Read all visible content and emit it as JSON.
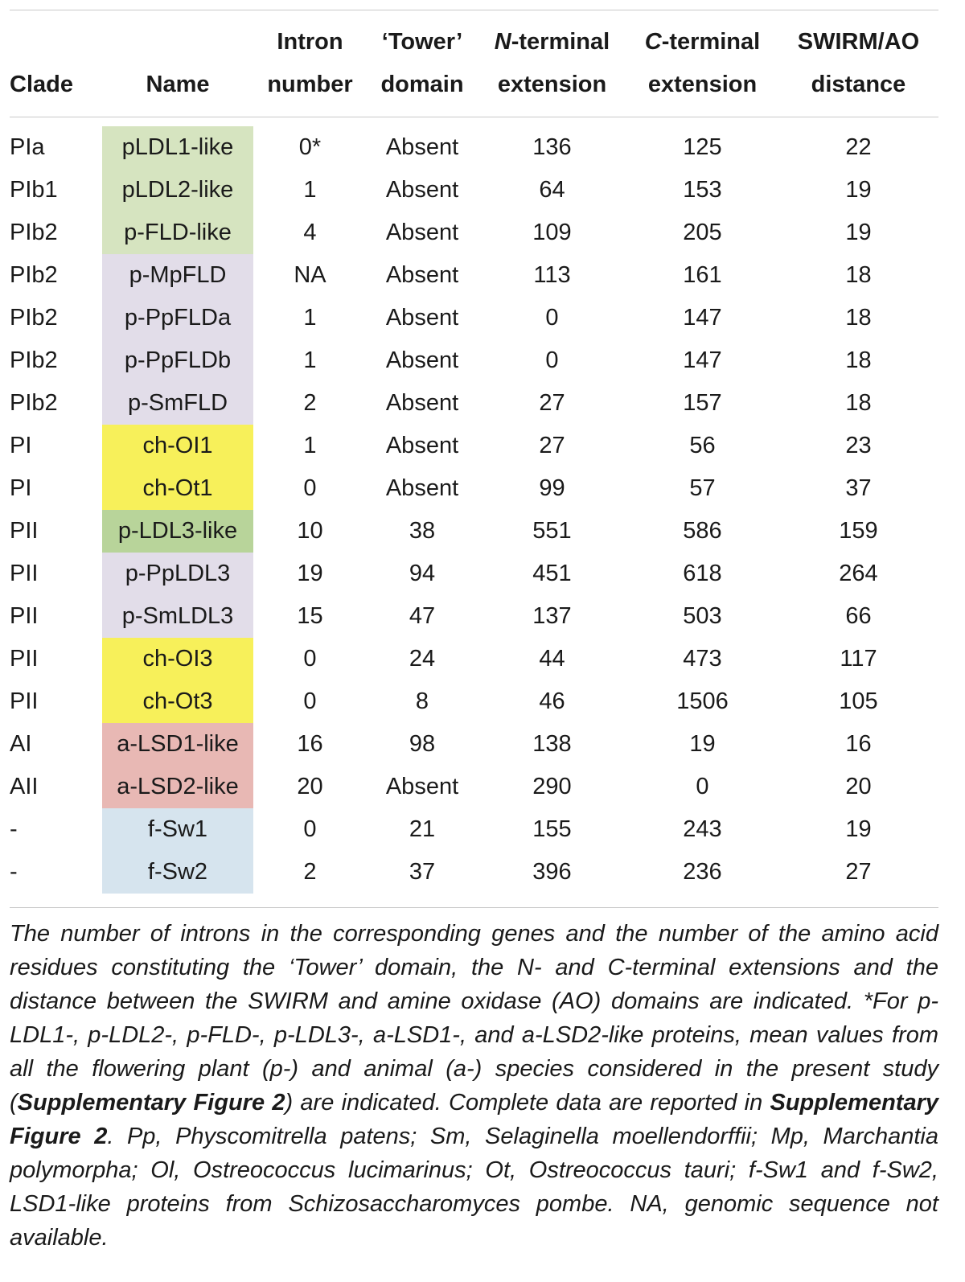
{
  "table": {
    "headers": {
      "clade": [
        "",
        "Clade"
      ],
      "name": [
        "",
        "Name"
      ],
      "intron": [
        "Intron",
        "number"
      ],
      "tower": [
        "‘Tower’",
        "domain"
      ],
      "nterm": [
        "N-terminal",
        "extension"
      ],
      "cterm": [
        "C-terminal",
        "extension"
      ],
      "swirm": [
        "SWIRM/AO",
        "distance"
      ]
    },
    "rows": [
      {
        "clade": "PIa",
        "name": "pLDL1-like",
        "color": "#d6e4c0",
        "intron": "0*",
        "tower": "Absent",
        "nterm": "136",
        "cterm": "125",
        "swirm": "22"
      },
      {
        "clade": "PIb1",
        "name": "pLDL2-like",
        "color": "#d6e4c0",
        "intron": "1",
        "tower": "Absent",
        "nterm": "64",
        "cterm": "153",
        "swirm": "19"
      },
      {
        "clade": "PIb2",
        "name": "p-FLD-like",
        "color": "#d6e4c0",
        "intron": "4",
        "tower": "Absent",
        "nterm": "109",
        "cterm": "205",
        "swirm": "19"
      },
      {
        "clade": "PIb2",
        "name": "p-MpFLD",
        "color": "#e2dde9",
        "intron": "NA",
        "tower": "Absent",
        "nterm": "113",
        "cterm": "161",
        "swirm": "18"
      },
      {
        "clade": "PIb2",
        "name": "p-PpFLDa",
        "color": "#e2dde9",
        "intron": "1",
        "tower": "Absent",
        "nterm": "0",
        "cterm": "147",
        "swirm": "18"
      },
      {
        "clade": "PIb2",
        "name": "p-PpFLDb",
        "color": "#e2dde9",
        "intron": "1",
        "tower": "Absent",
        "nterm": "0",
        "cterm": "147",
        "swirm": "18"
      },
      {
        "clade": "PIb2",
        "name": "p-SmFLD",
        "color": "#e2dde9",
        "intron": "2",
        "tower": "Absent",
        "nterm": "27",
        "cterm": "157",
        "swirm": "18"
      },
      {
        "clade": "PI",
        "name": "ch-OI1",
        "color": "#f7f05a",
        "intron": "1",
        "tower": "Absent",
        "nterm": "27",
        "cterm": "56",
        "swirm": "23"
      },
      {
        "clade": "PI",
        "name": "ch-Ot1",
        "color": "#f7f05a",
        "intron": "0",
        "tower": "Absent",
        "nterm": "99",
        "cterm": "57",
        "swirm": "37"
      },
      {
        "clade": "PII",
        "name": "p-LDL3-like",
        "color": "#b8d49a",
        "intron": "10",
        "tower": "38",
        "nterm": "551",
        "cterm": "586",
        "swirm": "159"
      },
      {
        "clade": "PII",
        "name": "p-PpLDL3",
        "color": "#e2dde9",
        "intron": "19",
        "tower": "94",
        "nterm": "451",
        "cterm": "618",
        "swirm": "264"
      },
      {
        "clade": "PII",
        "name": "p-SmLDL3",
        "color": "#e2dde9",
        "intron": "15",
        "tower": "47",
        "nterm": "137",
        "cterm": "503",
        "swirm": "66"
      },
      {
        "clade": "PII",
        "name": "ch-OI3",
        "color": "#f7f05a",
        "intron": "0",
        "tower": "24",
        "nterm": "44",
        "cterm": "473",
        "swirm": "117"
      },
      {
        "clade": "PII",
        "name": "ch-Ot3",
        "color": "#f7f05a",
        "intron": "0",
        "tower": "8",
        "nterm": "46",
        "cterm": "1506",
        "swirm": "105"
      },
      {
        "clade": "AI",
        "name": "a-LSD1-like",
        "color": "#e8b8b4",
        "intron": "16",
        "tower": "98",
        "nterm": "138",
        "cterm": "19",
        "swirm": "16"
      },
      {
        "clade": "AII",
        "name": "a-LSD2-like",
        "color": "#e8b8b4",
        "intron": "20",
        "tower": "Absent",
        "nterm": "290",
        "cterm": "0",
        "swirm": "20"
      },
      {
        "clade": "-",
        "name": "f-Sw1",
        "color": "#d6e4ee",
        "intron": "0",
        "tower": "21",
        "nterm": "155",
        "cterm": "243",
        "swirm": "19"
      },
      {
        "clade": "-",
        "name": "f-Sw2",
        "color": "#d6e4ee",
        "intron": "2",
        "tower": "37",
        "nterm": "396",
        "cterm": "236",
        "swirm": "27"
      }
    ]
  },
  "caption": {
    "part1": "The number of introns in the corresponding genes and the number of the amino acid residues constituting the ‘Tower’ domain, the N- and C-terminal extensions and the distance between the SWIRM and amine oxidase (AO) domains are indicated. *For p-LDL1-, p-LDL2-, p-FLD-, p-LDL3-, a-LSD1-, and a-LSD2-like proteins, mean values from all the flowering plant (p-) and animal (a-) species considered in the present study (",
    "bold1": "Supplementary Figure 2",
    "part2": ") are indicated. Complete data are reported in ",
    "bold2": "Supplementary Figure 2",
    "part3": ". Pp, Physcomitrella patens; Sm, Selaginella moellendorffii; Mp, Marchantia polymorpha; Ol, Ostreococcus lucimarinus; Ot, Ostreococcus tauri; f-Sw1 and f-Sw2, LSD1-like proteins from Schizosaccharomyces pombe. NA, genomic sequence not available."
  }
}
